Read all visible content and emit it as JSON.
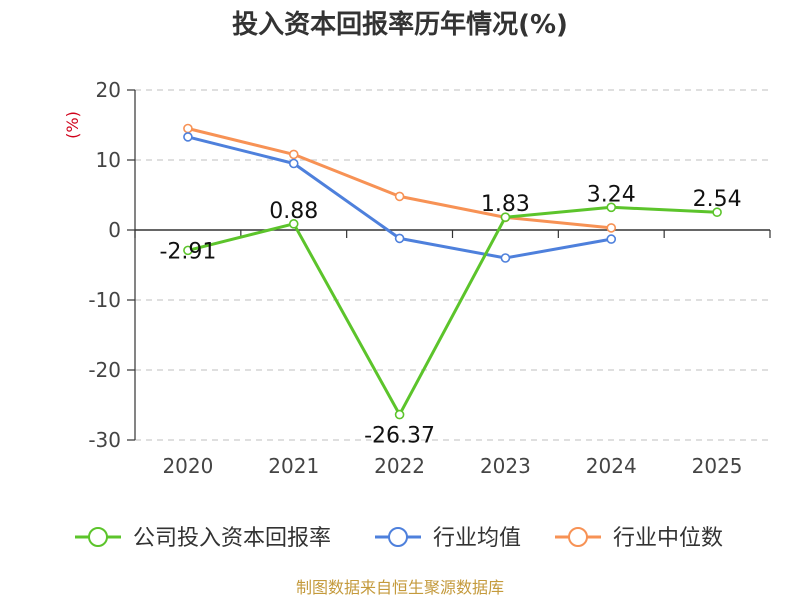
{
  "chart_data": {
    "type": "line",
    "title": "投入资本回报率历年情况(%)",
    "ylabel": "(%)",
    "categories": [
      "2020",
      "2021",
      "2022",
      "2023",
      "2024",
      "2025"
    ],
    "ylim": [
      -30,
      20
    ],
    "yticks": [
      20,
      10,
      0,
      -10,
      -20,
      -30
    ],
    "grid": true,
    "legend_position": "bottom",
    "series": [
      {
        "name": "公司投入资本回报率",
        "color": "#5cc42b",
        "values": [
          -2.91,
          0.88,
          -26.37,
          1.83,
          3.24,
          2.54
        ],
        "labels": [
          "-2.91",
          "0.88",
          "-26.37",
          "1.83",
          "3.24",
          "2.54"
        ],
        "show_labels": true
      },
      {
        "name": "行业均值",
        "color": "#4e80dc",
        "values": [
          13.3,
          9.5,
          -1.2,
          -4.0,
          -1.3,
          null
        ],
        "show_labels": false
      },
      {
        "name": "行业中位数",
        "color": "#f79255",
        "values": [
          14.5,
          10.8,
          4.8,
          1.8,
          0.3,
          null
        ],
        "show_labels": false
      }
    ]
  },
  "source": {
    "text": "制图数据来自恒生聚源数据库",
    "color": "#c49a3c"
  },
  "colors": {
    "axis": "#333333",
    "grid": "#cccccc",
    "ylabel": "#d0021b"
  }
}
